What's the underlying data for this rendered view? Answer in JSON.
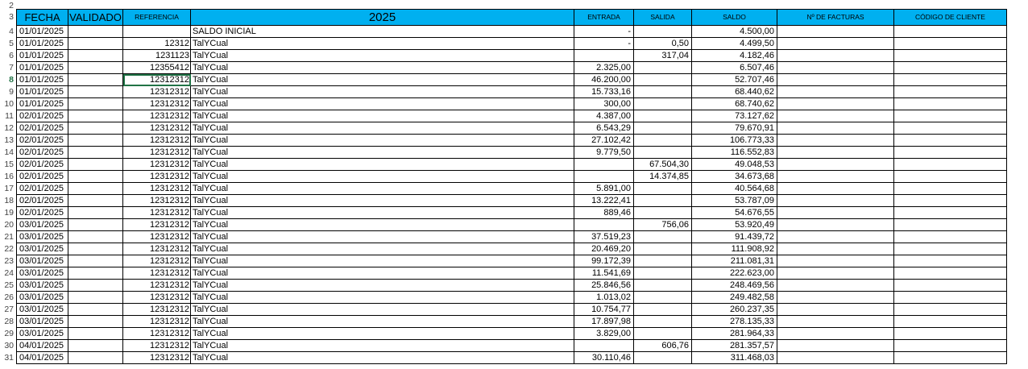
{
  "row_numbers": [
    "2",
    "3"
  ],
  "header": {
    "fecha": "FECHA",
    "validado": "VALIDADO",
    "referencia": "REFERENCIA",
    "year": "2025",
    "entrada": "ENTRADA",
    "salida": "SALIDA",
    "saldo": "SALDO",
    "facturas": "Nº DE FACTURAS",
    "cliente": "CÓDIGO DE CLIENTE"
  },
  "rows": [
    {
      "n": "4",
      "fecha": "01/01/2025",
      "ref": "",
      "concepto": "SALDO INICIAL",
      "entrada": "-",
      "salida": "",
      "saldo": "4.500,00"
    },
    {
      "n": "5",
      "fecha": "01/01/2025",
      "ref": "12312",
      "concepto": "TalYCual",
      "entrada": "-",
      "salida": "0,50",
      "saldo": "4.499,50"
    },
    {
      "n": "6",
      "fecha": "01/01/2025",
      "ref": "1231123",
      "concepto": "TalYCual",
      "entrada": "",
      "salida": "317,04",
      "saldo": "4.182,46"
    },
    {
      "n": "7",
      "fecha": "01/01/2025",
      "ref": "12355412",
      "concepto": "TalYCual",
      "entrada": "2.325,00",
      "salida": "",
      "saldo": "6.507,46"
    },
    {
      "n": "8",
      "fecha": "01/01/2025",
      "ref": "12312312",
      "concepto": "TalYCual",
      "entrada": "46.200,00",
      "salida": "",
      "saldo": "52.707,46"
    },
    {
      "n": "9",
      "fecha": "01/01/2025",
      "ref": "12312312",
      "concepto": "TalYCual",
      "entrada": "15.733,16",
      "salida": "",
      "saldo": "68.440,62"
    },
    {
      "n": "10",
      "fecha": "01/01/2025",
      "ref": "12312312",
      "concepto": "TalYCual",
      "entrada": "300,00",
      "salida": "",
      "saldo": "68.740,62"
    },
    {
      "n": "11",
      "fecha": "02/01/2025",
      "ref": "12312312",
      "concepto": "TalYCual",
      "entrada": "4.387,00",
      "salida": "",
      "saldo": "73.127,62"
    },
    {
      "n": "12",
      "fecha": "02/01/2025",
      "ref": "12312312",
      "concepto": "TalYCual",
      "entrada": "6.543,29",
      "salida": "",
      "saldo": "79.670,91"
    },
    {
      "n": "13",
      "fecha": "02/01/2025",
      "ref": "12312312",
      "concepto": "TalYCual",
      "entrada": "27.102,42",
      "salida": "",
      "saldo": "106.773,33"
    },
    {
      "n": "14",
      "fecha": "02/01/2025",
      "ref": "12312312",
      "concepto": "TalYCual",
      "entrada": "9.779,50",
      "salida": "",
      "saldo": "116.552,83"
    },
    {
      "n": "15",
      "fecha": "02/01/2025",
      "ref": "12312312",
      "concepto": "TalYCual",
      "entrada": "",
      "salida": "67.504,30",
      "saldo": "49.048,53"
    },
    {
      "n": "16",
      "fecha": "02/01/2025",
      "ref": "12312312",
      "concepto": "TalYCual",
      "entrada": "",
      "salida": "14.374,85",
      "saldo": "34.673,68"
    },
    {
      "n": "17",
      "fecha": "02/01/2025",
      "ref": "12312312",
      "concepto": "TalYCual",
      "entrada": "5.891,00",
      "salida": "",
      "saldo": "40.564,68"
    },
    {
      "n": "18",
      "fecha": "02/01/2025",
      "ref": "12312312",
      "concepto": "TalYCual",
      "entrada": "13.222,41",
      "salida": "",
      "saldo": "53.787,09"
    },
    {
      "n": "19",
      "fecha": "02/01/2025",
      "ref": "12312312",
      "concepto": "TalYCual",
      "entrada": "889,46",
      "salida": "",
      "saldo": "54.676,55"
    },
    {
      "n": "20",
      "fecha": "03/01/2025",
      "ref": "12312312",
      "concepto": "TalYCual",
      "entrada": "",
      "salida": "756,06",
      "saldo": "53.920,49"
    },
    {
      "n": "21",
      "fecha": "03/01/2025",
      "ref": "12312312",
      "concepto": "TalYCual",
      "entrada": "37.519,23",
      "salida": "",
      "saldo": "91.439,72"
    },
    {
      "n": "22",
      "fecha": "03/01/2025",
      "ref": "12312312",
      "concepto": "TalYCual",
      "entrada": "20.469,20",
      "salida": "",
      "saldo": "111.908,92"
    },
    {
      "n": "23",
      "fecha": "03/01/2025",
      "ref": "12312312",
      "concepto": "TalYCual",
      "entrada": "99.172,39",
      "salida": "",
      "saldo": "211.081,31"
    },
    {
      "n": "24",
      "fecha": "03/01/2025",
      "ref": "12312312",
      "concepto": "TalYCual",
      "entrada": "11.541,69",
      "salida": "",
      "saldo": "222.623,00"
    },
    {
      "n": "25",
      "fecha": "03/01/2025",
      "ref": "12312312",
      "concepto": "TalYCual",
      "entrada": "25.846,56",
      "salida": "",
      "saldo": "248.469,56"
    },
    {
      "n": "26",
      "fecha": "03/01/2025",
      "ref": "12312312",
      "concepto": "TalYCual",
      "entrada": "1.013,02",
      "salida": "",
      "saldo": "249.482,58"
    },
    {
      "n": "27",
      "fecha": "03/01/2025",
      "ref": "12312312",
      "concepto": "TalYCual",
      "entrada": "10.754,77",
      "salida": "",
      "saldo": "260.237,35"
    },
    {
      "n": "28",
      "fecha": "03/01/2025",
      "ref": "12312312",
      "concepto": "TalYCual",
      "entrada": "17.897,98",
      "salida": "",
      "saldo": "278.135,33"
    },
    {
      "n": "29",
      "fecha": "03/01/2025",
      "ref": "12312312",
      "concepto": "TalYCual",
      "entrada": "3.829,00",
      "salida": "",
      "saldo": "281.964,33"
    },
    {
      "n": "30",
      "fecha": "04/01/2025",
      "ref": "12312312",
      "concepto": "TalYCual",
      "entrada": "",
      "salida": "606,76",
      "saldo": "281.357,57"
    },
    {
      "n": "31",
      "fecha": "04/01/2025",
      "ref": "12312312",
      "concepto": "TalYCual",
      "entrada": "30.110,46",
      "salida": "",
      "saldo": "311.468,03"
    }
  ],
  "active_row": "8",
  "colors": {
    "header_bg": "#00b0f0",
    "selection": "#217346"
  }
}
